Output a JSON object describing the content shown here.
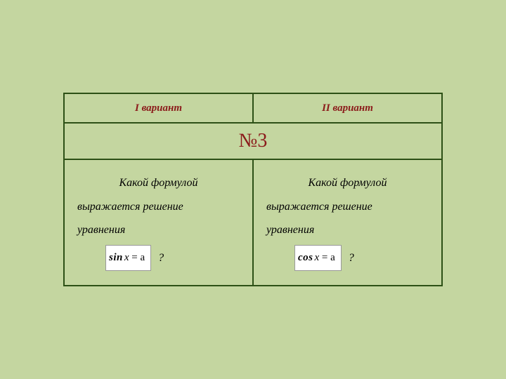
{
  "background_color": "#c4d6a0",
  "border_color": "#2d5016",
  "header": {
    "col1": "I вариант",
    "col2": "II вариант",
    "text_color": "#8b1a1a",
    "fontsize": 15
  },
  "title": {
    "label": "№3",
    "text_color": "#8b1a1a",
    "fontsize": 28
  },
  "question_text": {
    "line1": "Какой формулой",
    "line2": "выражается решение",
    "line3": "уравнения",
    "text_color": "#1a1a1a",
    "fontsize": 16
  },
  "formulas": {
    "variant1": {
      "fn": "sin",
      "var": "x",
      "rhs": "= a"
    },
    "variant2": {
      "fn": "cos",
      "var": "x",
      "rhs": "= a"
    },
    "box_bg": "#ffffff"
  },
  "qmark": "?"
}
